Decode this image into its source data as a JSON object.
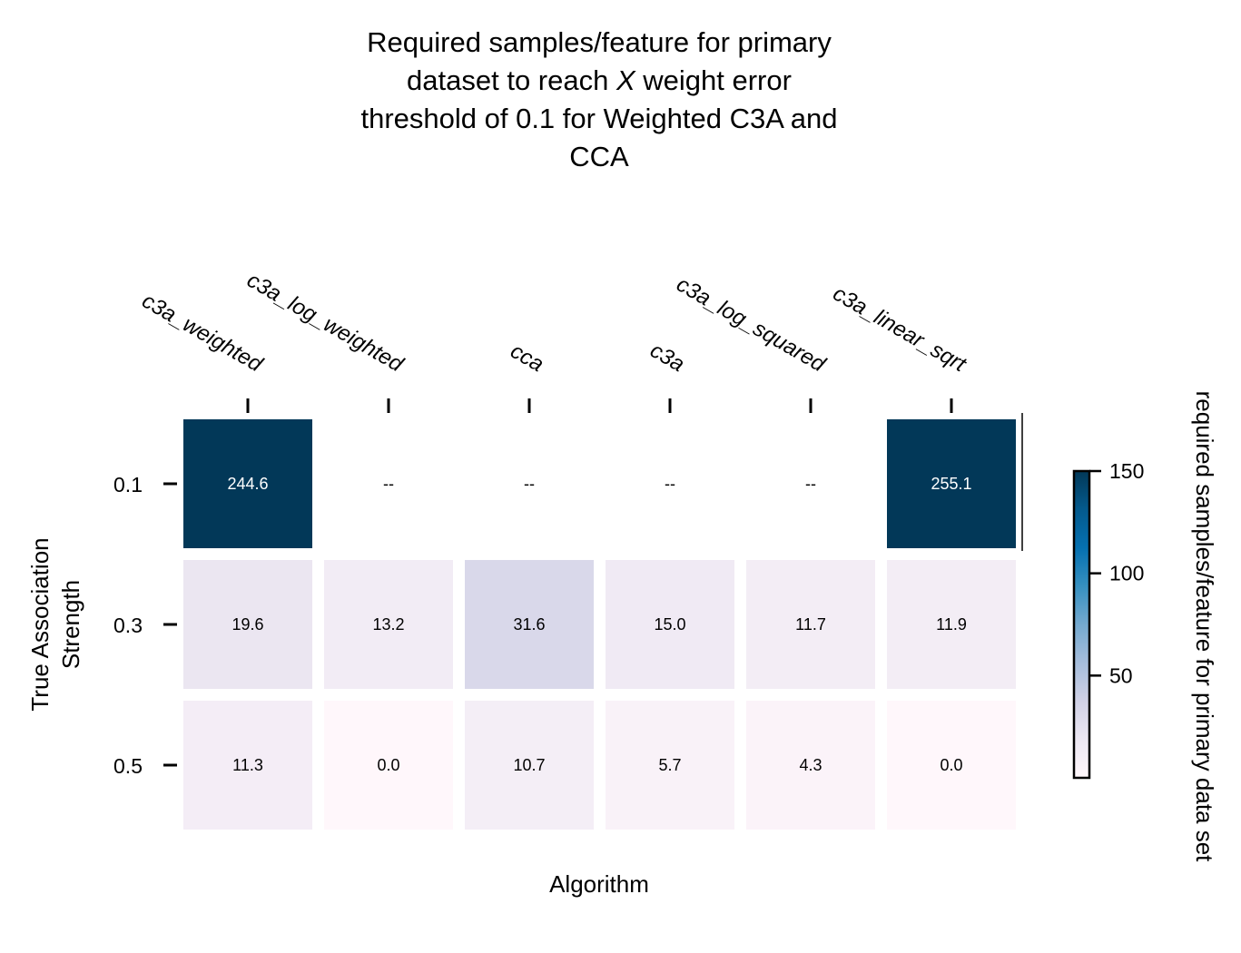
{
  "chart_data": {
    "type": "heatmap",
    "title_lines": [
      "Required samples/feature for primary",
      "dataset to reach ",
      "threshold of 0.1 for Weighted C3A and",
      "CCA"
    ],
    "title_italic_var": "X",
    "title_line2_tail": " weight error",
    "xlabel": "Algorithm",
    "ylabel_lines": [
      "True Association",
      "Strength"
    ],
    "columns": [
      "c3a_weighted",
      "c3a_log_weighted",
      "cca",
      "c3a",
      "c3a_log_squared",
      "c3a_linear_sqrt"
    ],
    "rows": [
      "0.1",
      "0.3",
      "0.5"
    ],
    "values": [
      [
        244.6,
        null,
        null,
        null,
        null,
        255.1
      ],
      [
        19.6,
        13.2,
        31.6,
        15.0,
        11.7,
        11.9
      ],
      [
        11.3,
        0.0,
        10.7,
        5.7,
        4.3,
        0.0
      ]
    ],
    "cell_labels": [
      [
        "244.6",
        "--",
        "--",
        "--",
        "--",
        "255.1"
      ],
      [
        "19.6",
        "13.2",
        "31.6",
        "15.0",
        "11.7",
        "11.9"
      ],
      [
        "11.3",
        "0.0",
        "10.7",
        "5.7",
        "4.3",
        "0.0"
      ]
    ],
    "missing_label": "--",
    "colorbar": {
      "label": "required samples/feature for primary data set",
      "min": 0,
      "max": 150,
      "ticks": [
        50,
        100,
        150
      ],
      "tick_labels": [
        "50",
        "100",
        "150"
      ],
      "colors": [
        "#fff7fb",
        "#ece7f2",
        "#d0d1e6",
        "#a6bddb",
        "#74a9cf",
        "#3690c0",
        "#0570b0",
        "#045a8d",
        "#023858"
      ]
    }
  }
}
